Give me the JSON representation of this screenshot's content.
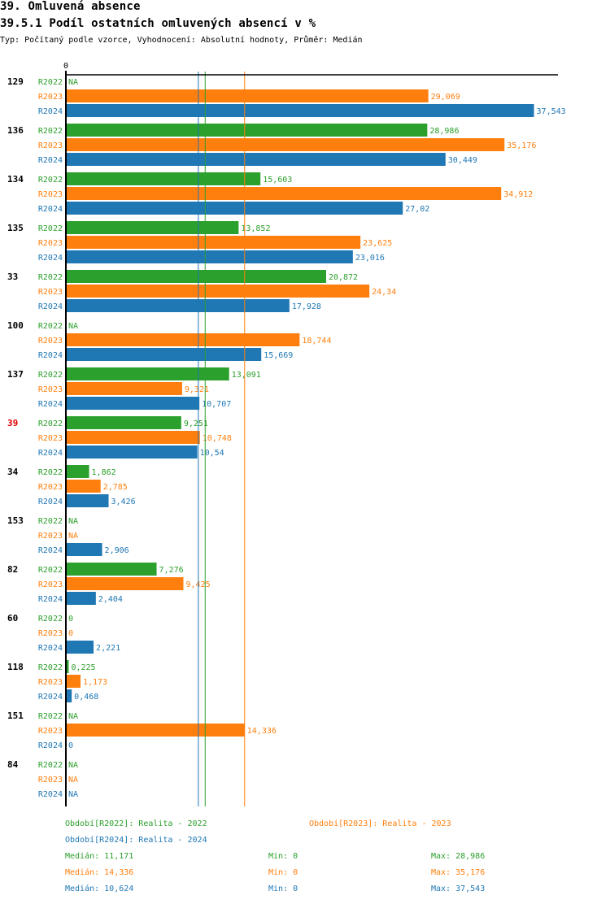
{
  "header": {
    "title": "39. Omluvená absence",
    "subtitle": "39.5.1 Podíl ostatních omluvených absencí v %",
    "info": "Typ: Počítaný podle vzorce, Vyhodnocení: Absolutní hodnoty, Průměr: Medián"
  },
  "colors": {
    "R2022": "#2ca02c",
    "R2023": "#ff7f0e",
    "R2024": "#1f77b4",
    "highlight": "#e00000",
    "axis": "#000000"
  },
  "chart_data": {
    "type": "bar",
    "orientation": "horizontal",
    "title": "39.5.1 Podíl ostatních omluvených absencí v %",
    "xlabel": "",
    "ylabel": "",
    "x_tick_labels": [
      "0"
    ],
    "xlim": [
      0,
      40.5
    ],
    "series_names": [
      "R2022",
      "R2023",
      "R2024"
    ],
    "highlight_category": "39",
    "categories": [
      "129",
      "136",
      "134",
      "135",
      "33",
      "100",
      "137",
      "39",
      "34",
      "153",
      "82",
      "60",
      "118",
      "151",
      "84"
    ],
    "series": [
      {
        "name": "R2022",
        "values": [
          null,
          28.986,
          15.603,
          13.852,
          20.872,
          null,
          13.091,
          9.251,
          1.862,
          null,
          7.276,
          0,
          0.225,
          null,
          null
        ],
        "labels": [
          "NA",
          "28,986",
          "15,603",
          "13,852",
          "20,872",
          "NA",
          "13,091",
          "9,251",
          "1,862",
          "NA",
          "7,276",
          "0",
          "0,225",
          "NA",
          "NA"
        ]
      },
      {
        "name": "R2023",
        "values": [
          29.069,
          35.176,
          34.912,
          23.625,
          24.34,
          18.744,
          9.321,
          10.748,
          2.785,
          null,
          9.425,
          0,
          1.173,
          14.336,
          null
        ],
        "labels": [
          "29,069",
          "35,176",
          "34,912",
          "23,625",
          "24,34",
          "18,744",
          "9,321",
          "10,748",
          "2,785",
          "NA",
          "9,425",
          "0",
          "1,173",
          "14,336",
          "NA"
        ]
      },
      {
        "name": "R2024",
        "values": [
          37.543,
          30.449,
          27.02,
          23.016,
          17.928,
          15.669,
          10.707,
          10.54,
          3.426,
          2.906,
          2.404,
          2.221,
          0.468,
          0,
          null
        ],
        "labels": [
          "37,543",
          "30,449",
          "27,02",
          "23,016",
          "17,928",
          "15,669",
          "10,707",
          "10,54",
          "3,426",
          "2,906",
          "2,404",
          "2,221",
          "0,468",
          "0",
          "NA"
        ]
      }
    ],
    "median_lines": [
      {
        "series": "R2022",
        "value": 11.171
      },
      {
        "series": "R2023",
        "value": 14.336
      },
      {
        "series": "R2024",
        "value": 10.624
      }
    ]
  },
  "legend": {
    "periods": [
      {
        "series": "R2022",
        "label": "Období[R2022]: Realita - 2022"
      },
      {
        "series": "R2023",
        "label": "Období[R2023]: Realita - 2023"
      },
      {
        "series": "R2024",
        "label": "Období[R2024]: Realita - 2024"
      }
    ],
    "stats": [
      {
        "series": "R2022",
        "median": "Medián: 11,171",
        "min": "Min: 0",
        "max": "Max: 28,986"
      },
      {
        "series": "R2023",
        "median": "Medián: 14,336",
        "min": "Min: 0",
        "max": "Max: 35,176"
      },
      {
        "series": "R2024",
        "median": "Medián: 10,624",
        "min": "Min: 0",
        "max": "Max: 37,543"
      }
    ]
  }
}
